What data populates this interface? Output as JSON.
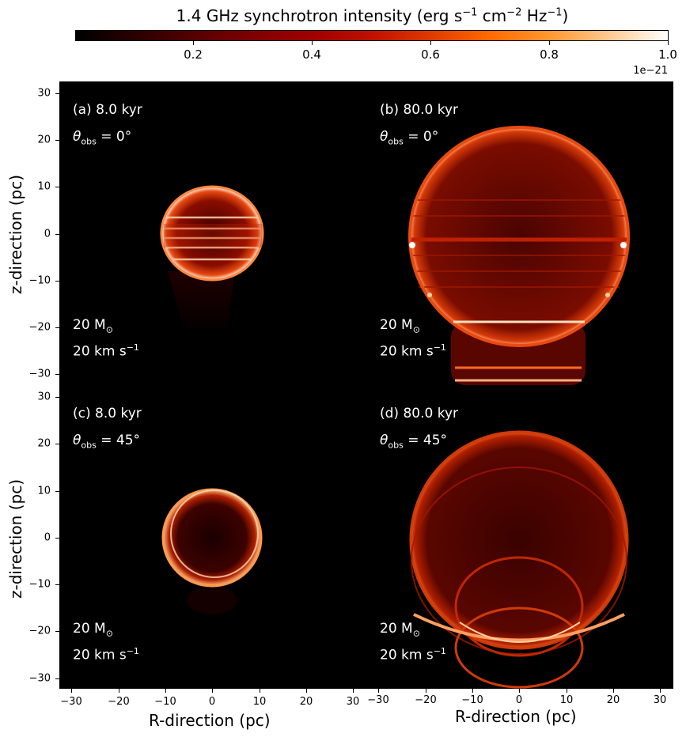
{
  "colorbar": {
    "title_main": "1.4 GHz synchrotron intensity (erg s",
    "title_exp1": "−1",
    "title_mid": " cm",
    "title_exp2": "−2",
    "title_mid2": " Hz",
    "title_exp3": "−1",
    "title_end": ")",
    "ticks": [
      "0.2",
      "0.4",
      "0.6",
      "0.8",
      "1.0"
    ],
    "tick_values": [
      0.2,
      0.4,
      0.6,
      0.8,
      1.0
    ],
    "range": [
      0.0,
      1.0
    ],
    "offset_text": "1e−21",
    "colormap": "gist_heat"
  },
  "axes": {
    "xlabel": "R-direction (pc)",
    "ylabel": "z-direction (pc)",
    "xticks": [
      "−30",
      "−20",
      "−10",
      "0",
      "10",
      "20",
      "30"
    ],
    "yticks": [
      "30",
      "20",
      "10",
      "0",
      "−10",
      "−20",
      "−30"
    ]
  },
  "panels": [
    {
      "label": "(a) 8.0 kyr",
      "theta_prefix": "θ",
      "theta_sub": "obs",
      "theta_value": " = 0°",
      "mass": "20 M",
      "mass_sub": "⊙",
      "vel": "20 km s",
      "vel_sup": "−1"
    },
    {
      "label": "(b) 80.0 kyr",
      "theta_prefix": "θ",
      "theta_sub": "obs",
      "theta_value": " = 0°",
      "mass": "20 M",
      "mass_sub": "⊙",
      "vel": "20 km s",
      "vel_sup": "−1"
    },
    {
      "label": "(c) 8.0 kyr",
      "theta_prefix": "θ",
      "theta_sub": "obs",
      "theta_value": " = 45°",
      "mass": "20 M",
      "mass_sub": "⊙",
      "vel": "20 km s",
      "vel_sup": "−1"
    },
    {
      "label": "(d) 80.0 kyr",
      "theta_prefix": "θ",
      "theta_sub": "obs",
      "theta_value": " = 45°",
      "mass": "20 M",
      "mass_sub": "⊙",
      "vel": "20 km s",
      "vel_sup": "−1"
    }
  ],
  "chart_data": {
    "type": "heatmap",
    "title": "1.4 GHz synchrotron intensity (erg s−1 cm−2 Hz−1)",
    "xlabel": "R-direction (pc)",
    "ylabel": "z-direction (pc)",
    "xlim": [
      -32.5,
      32.5
    ],
    "ylim": [
      -32.5,
      32.5
    ],
    "color_range": [
      0.0,
      1e-21
    ],
    "panels": [
      "(a) 8.0 kyr",
      "(b) 80.0 kyr",
      "(c) 8.0 kyr",
      "(d) 80.0 kyr"
    ]
  }
}
